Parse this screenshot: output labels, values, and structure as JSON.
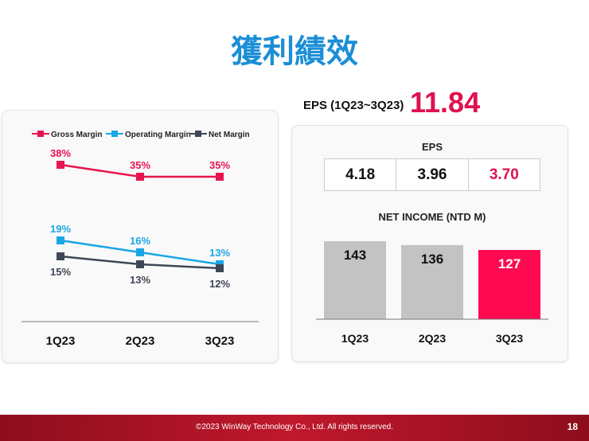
{
  "title": "獲利績效",
  "eps_total": {
    "label": "EPS (1Q23~3Q23)",
    "value": "11.84"
  },
  "colors": {
    "gross": "#e8144f",
    "operating": "#1aa6e4",
    "net": "#3f4756",
    "highlight": "#ff0a50",
    "bar": "#c3c3c3"
  },
  "chart_data": [
    {
      "type": "line",
      "categories": [
        "1Q23",
        "2Q23",
        "3Q23"
      ],
      "series": [
        {
          "name": "Gross Margin",
          "values": [
            38,
            35,
            35
          ],
          "labels": [
            "38%",
            "35%",
            "35%"
          ]
        },
        {
          "name": "Operating Margin",
          "values": [
            19,
            16,
            13
          ],
          "labels": [
            "19%",
            "16%",
            "13%"
          ]
        },
        {
          "name": "Net Margin",
          "values": [
            15,
            13,
            12
          ],
          "labels": [
            "15%",
            "13%",
            "12%"
          ]
        }
      ],
      "unit": "%",
      "legend": "top",
      "grid": false
    },
    {
      "type": "table",
      "title": "EPS",
      "categories": [
        "1Q23",
        "2Q23",
        "3Q23"
      ],
      "values": [
        "4.18",
        "3.96",
        "3.70"
      ]
    },
    {
      "type": "bar",
      "title": "NET INCOME (NTD M)",
      "categories": [
        "1Q23",
        "2Q23",
        "3Q23"
      ],
      "values": [
        143,
        136,
        127
      ],
      "grid": false
    }
  ],
  "footer": {
    "copyright": "©2023 WinWay Technology Co., Ltd. All rights reserved.",
    "page": "18"
  }
}
